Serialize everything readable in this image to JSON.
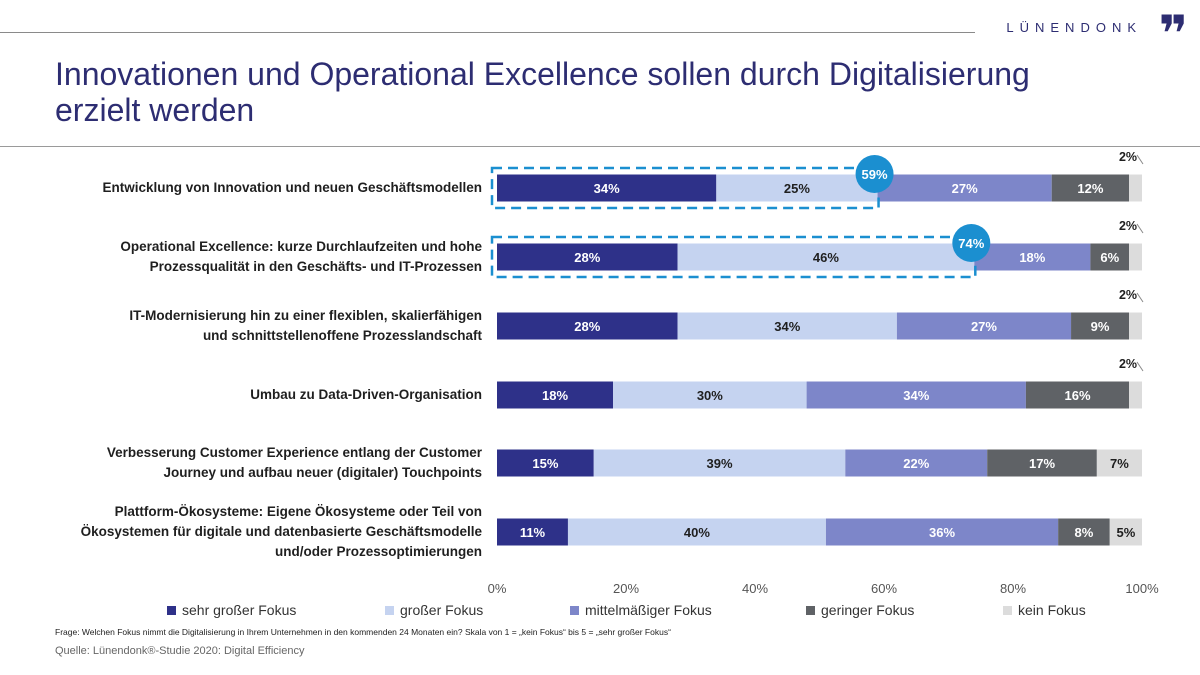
{
  "brand": {
    "name": "LÜNENDONK",
    "mark": "❞"
  },
  "header": {
    "title_line1": "Innovationen und Operational Excellence sollen durch Digitalisierung",
    "title_line2": "erzielt werden"
  },
  "colors": {
    "sehr_gross": "#2e3189",
    "gross": "#c5d3f0",
    "mittel": "#7d86c9",
    "gering": "#5f6266",
    "kein": "#dcdcdc",
    "highlight": "#1b8fd0",
    "dark_label": "#1f1f1f"
  },
  "chart_data": {
    "type": "bar",
    "orientation": "horizontal",
    "stacked": true,
    "title": "Innovationen und Operational Excellence sollen durch Digitalisierung erzielt werden",
    "xlim": [
      0,
      100
    ],
    "x_ticks": [
      "0%",
      "20%",
      "40%",
      "60%",
      "80%",
      "100%"
    ],
    "legend_position": "bottom",
    "categories": [
      "Entwicklung von Innovation und neuen Geschäftsmodellen",
      "Operational Excellence: kurze Durchlaufzeiten und hohe Prozessqualität in den Geschäfts- und IT-Prozessen",
      "IT-Modernisierung hin zu einer flexiblen, skalierfähigen und schnittstellenoffene Prozesslandschaft",
      "Umbau zu Data-Driven-Organisation",
      "Verbesserung Customer Experience entlang der Customer Journey und aufbau neuer (digitaler) Touchpoints",
      "Plattform-Ökosysteme: Eigene Ökosysteme oder Teil von Ökosystemen für digitale und datenbasierte Geschäftsmodelle und/oder Prozessoptimierungen"
    ],
    "category_lines": [
      [
        "Entwicklung von Innovation und neuen Geschäftsmodellen"
      ],
      [
        "Operational Excellence: kurze Durchlaufzeiten und hohe",
        "Prozessqualität in den Geschäfts- und IT-Prozessen"
      ],
      [
        "IT-Modernisierung hin zu einer flexiblen, skalierfähigen",
        "und schnittstellenoffene Prozesslandschaft"
      ],
      [
        "Umbau zu Data-Driven-Organisation"
      ],
      [
        "Verbesserung Customer Experience entlang der Customer",
        "Journey und aufbau neuer (digitaler) Touchpoints"
      ],
      [
        "Plattform-Ökosysteme: Eigene Ökosysteme oder Teil von",
        "Ökosystemen für digitale und datenbasierte Geschäftsmodelle",
        "und/oder Prozessoptimierungen"
      ]
    ],
    "series": [
      {
        "name": "sehr großer Fokus",
        "color_key": "sehr_gross",
        "values": [
          34,
          28,
          28,
          18,
          15,
          11
        ],
        "labels": [
          "34%",
          "28%",
          "28%",
          "18%",
          "15%",
          "11%"
        ]
      },
      {
        "name": "großer Fokus",
        "color_key": "gross",
        "values": [
          25,
          46,
          34,
          30,
          39,
          40
        ],
        "labels": [
          "25%",
          "46%",
          "34%",
          "30%",
          "39%",
          "40%"
        ]
      },
      {
        "name": "mittelmäßiger Fokus",
        "color_key": "mittel",
        "values": [
          27,
          18,
          27,
          34,
          22,
          36
        ],
        "labels": [
          "27%",
          "18%",
          "27%",
          "34%",
          "22%",
          "36%"
        ]
      },
      {
        "name": "geringer Fokus",
        "color_key": "gering",
        "values": [
          12,
          6,
          9,
          16,
          17,
          8
        ],
        "labels": [
          "12%",
          "6%",
          "9%",
          "16%",
          "17%",
          "8%"
        ]
      },
      {
        "name": "kein Fokus",
        "color_key": "kein",
        "values": [
          2,
          2,
          2,
          2,
          7,
          5
        ],
        "labels": [
          "2%",
          "2%",
          "2%",
          "2%",
          "7%",
          "5%"
        ]
      }
    ],
    "highlights": [
      {
        "row": 0,
        "value": 59,
        "label": "59%"
      },
      {
        "row": 1,
        "value": 74,
        "label": "74%"
      }
    ]
  },
  "footer": {
    "question": "Frage: Welchen Fokus nimmt die Digitalisierung in Ihrem Unternehmen in den kommenden 24 Monaten ein? Skala von 1 = „kein Fokus“ bis 5 = „sehr großer Fokus“",
    "source": "Quelle: Lünendonk®-Studie 2020: Digital Efficiency"
  }
}
